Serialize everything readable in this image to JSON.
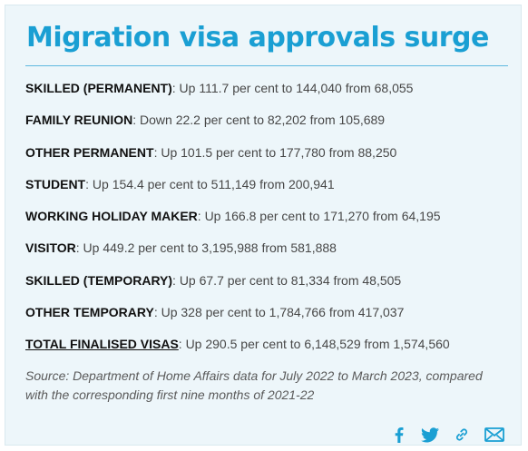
{
  "title": "Migration visa approvals surge",
  "items": [
    {
      "label": "SKILLED (PERMANENT)",
      "text": ": Up 111.7 per cent to 144,040 from 68,055"
    },
    {
      "label": "FAMILY REUNION",
      "text": ": Down 22.2 per cent to 82,202 from 105,689"
    },
    {
      "label": "OTHER PERMANENT",
      "text": ": Up 101.5 per cent to 177,780 from 88,250"
    },
    {
      "label": "STUDENT",
      "text": ": Up 154.4 per cent to 511,149 from 200,941"
    },
    {
      "label": "WORKING HOLIDAY MAKER",
      "text": ": Up 166.8 per cent to 171,270 from 64,195"
    },
    {
      "label": "VISITOR",
      "text": ": Up 449.2 per cent to 3,195,988 from 581,888"
    },
    {
      "label": "SKILLED (TEMPORARY)",
      "text": ": Up 67.7 per cent to 81,334 from 48,505"
    },
    {
      "label": "OTHER TEMPORARY",
      "text": ": Up 328 per cent to 1,784,766 from 417,037"
    },
    {
      "label": "TOTAL FINALISED VISAS",
      "text": ": Up 290.5 per cent to 6,148,529 from 1,574,560"
    }
  ],
  "source": "Source: Department of Home Affairs data for July 2022 to March 2023, compared with the corresponding first nine months of 2021-22",
  "share_icons": [
    "facebook-icon",
    "twitter-icon",
    "link-icon",
    "email-icon"
  ],
  "colors": {
    "accent": "#1a9fd3",
    "background": "#edf6fa",
    "label_text": "#111111",
    "body_text": "#474747"
  }
}
